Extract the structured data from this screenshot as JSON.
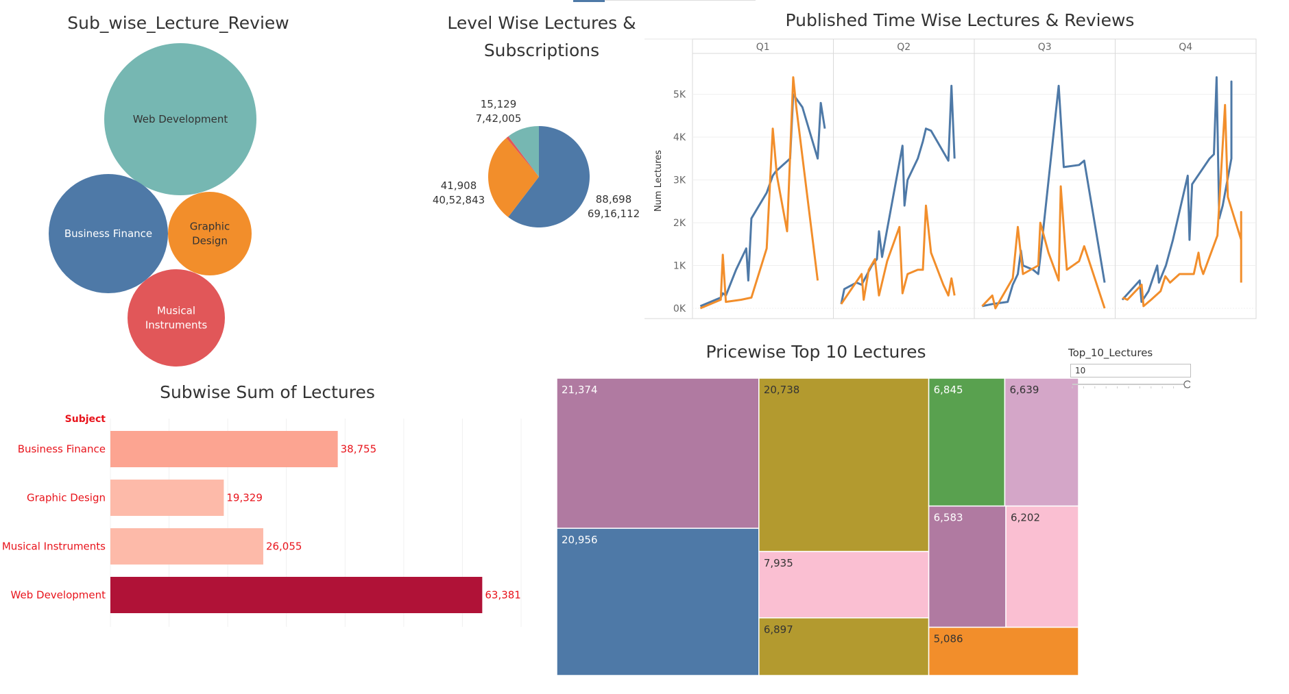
{
  "chart_data": [
    {
      "id": "bubble",
      "type": "bubble",
      "title": "Sub_wise_Lecture_Review",
      "bubbles": [
        {
          "label": "Web Development",
          "color": "#76b7b2",
          "text_color": "#333333"
        },
        {
          "label": "Business Finance",
          "color": "#4e79a7",
          "text_color": "#ffffff"
        },
        {
          "label": "Graphic Design",
          "color": "#f28e2b",
          "text_color": "#333333"
        },
        {
          "label": "Musical Instruments",
          "color": "#e15759",
          "text_color": "#ffffff"
        }
      ]
    },
    {
      "id": "pie",
      "type": "pie",
      "title": "Level Wise Lectures &\nSubscriptions",
      "slices": [
        {
          "lectures": 88698,
          "subscriptions": 6916112,
          "label_lectures": "88,698",
          "label_subscriptions": "69,16,112",
          "color": "#4e79a7"
        },
        {
          "lectures": 41908,
          "subscriptions": 4052843,
          "label_lectures": "41,908",
          "label_subscriptions": "40,52,843",
          "color": "#f28e2b"
        },
        {
          "lectures": 1200,
          "subscriptions": 0,
          "label_lectures": "",
          "label_subscriptions": "",
          "color": "#e15759"
        },
        {
          "lectures": 15129,
          "subscriptions": 742005,
          "label_lectures": "15,129",
          "label_subscriptions": "7,42,005",
          "color": "#76b7b2"
        }
      ]
    },
    {
      "id": "line",
      "type": "line",
      "title": "Published Time Wise Lectures & Reviews",
      "ylabel": "Num Lectures",
      "quarters": [
        "Q1",
        "Q2",
        "Q3",
        "Q4"
      ],
      "ylim": [
        0,
        5700
      ],
      "yticks": [
        0,
        1000,
        2000,
        3000,
        4000,
        5000
      ],
      "ytick_labels": [
        "0K",
        "1K",
        "2K",
        "3K",
        "4K",
        "5K"
      ],
      "x_range": [
        0,
        1
      ],
      "series": [
        {
          "color": "#4e79a7",
          "panels": [
            [
              [
                0.05,
                50
              ],
              [
                0.25,
                250
              ],
              [
                0.27,
                350
              ],
              [
                0.3,
                300
              ],
              [
                0.4,
                900
              ],
              [
                0.5,
                1400
              ],
              [
                0.52,
                650
              ],
              [
                0.55,
                2100
              ],
              [
                0.7,
                2700
              ],
              [
                0.76,
                3100
              ],
              [
                0.79,
                3200
              ],
              [
                0.93,
                3500
              ],
              [
                0.96,
                5000
              ],
              [
                1.05,
                4700
              ],
              [
                1.2,
                3500
              ],
              [
                1.23,
                4800
              ],
              [
                1.27,
                4200
              ]
            ],
            [
              [
                0.05,
                100
              ],
              [
                0.08,
                450
              ],
              [
                0.2,
                600
              ],
              [
                0.25,
                550
              ],
              [
                0.35,
                1000
              ],
              [
                0.4,
                1150
              ],
              [
                0.42,
                1800
              ],
              [
                0.45,
                1200
              ],
              [
                0.65,
                3800
              ],
              [
                0.67,
                2400
              ],
              [
                0.7,
                3000
              ],
              [
                0.8,
                3500
              ],
              [
                0.85,
                3900
              ],
              [
                0.88,
                4200
              ],
              [
                0.93,
                4150
              ],
              [
                1.1,
                3450
              ],
              [
                1.13,
                5200
              ],
              [
                1.16,
                3500
              ]
            ],
            [
              [
                0.05,
                50
              ],
              [
                0.15,
                100
              ],
              [
                0.3,
                150
              ],
              [
                0.35,
                550
              ],
              [
                0.4,
                800
              ],
              [
                0.43,
                1350
              ],
              [
                0.45,
                1000
              ],
              [
                0.55,
                900
              ],
              [
                0.6,
                800
              ],
              [
                0.62,
                1200
              ],
              [
                0.8,
                5200
              ],
              [
                0.85,
                3300
              ],
              [
                1.0,
                3350
              ],
              [
                1.05,
                3450
              ],
              [
                1.25,
                600
              ]
            ],
            [
              [
                0.05,
                200
              ],
              [
                0.25,
                650
              ],
              [
                0.27,
                150
              ],
              [
                0.35,
                400
              ],
              [
                0.45,
                1000
              ],
              [
                0.47,
                600
              ],
              [
                0.55,
                1000
              ],
              [
                0.63,
                1600
              ],
              [
                0.8,
                3100
              ],
              [
                0.82,
                1600
              ],
              [
                0.85,
                2900
              ],
              [
                1.05,
                3500
              ],
              [
                1.1,
                3600
              ],
              [
                1.13,
                5400
              ],
              [
                1.16,
                2100
              ],
              [
                1.2,
                2400
              ],
              [
                1.3,
                3500
              ],
              [
                1.45,
                5300
              ],
              [
                1.5,
                5100
              ],
              [
                1.52,
                4700
              ]
            ]
          ]
        },
        {
          "color": "#f28e2b",
          "panels": [
            [
              [
                0.05,
                0
              ],
              [
                0.25,
                200
              ],
              [
                0.27,
                1250
              ],
              [
                0.3,
                150
              ],
              [
                0.45,
                200
              ],
              [
                0.55,
                250
              ],
              [
                0.7,
                1400
              ],
              [
                0.76,
                4200
              ],
              [
                0.8,
                3100
              ],
              [
                0.9,
                1800
              ],
              [
                0.96,
                5400
              ],
              [
                0.99,
                4700
              ],
              [
                1.2,
                650
              ]
            ],
            [
              [
                0.05,
                100
              ],
              [
                0.15,
                450
              ],
              [
                0.25,
                800
              ],
              [
                0.27,
                200
              ],
              [
                0.32,
                900
              ],
              [
                0.38,
                1150
              ],
              [
                0.42,
                300
              ],
              [
                0.5,
                1100
              ],
              [
                0.62,
                1900
              ],
              [
                0.65,
                350
              ],
              [
                0.7,
                800
              ],
              [
                0.8,
                900
              ],
              [
                0.85,
                900
              ],
              [
                0.88,
                2400
              ],
              [
                0.93,
                1300
              ],
              [
                1.05,
                550
              ],
              [
                1.1,
                300
              ],
              [
                1.13,
                700
              ],
              [
                1.16,
                300
              ]
            ],
            [
              [
                0.05,
                50
              ],
              [
                0.15,
                300
              ],
              [
                0.18,
                0
              ],
              [
                0.35,
                700
              ],
              [
                0.4,
                1900
              ],
              [
                0.45,
                800
              ],
              [
                0.6,
                1000
              ],
              [
                0.62,
                2000
              ],
              [
                0.7,
                1300
              ],
              [
                0.8,
                650
              ],
              [
                0.82,
                2850
              ],
              [
                0.88,
                900
              ],
              [
                1.0,
                1100
              ],
              [
                1.05,
                1450
              ],
              [
                1.25,
                0
              ]
            ],
            [
              [
                0.05,
                250
              ],
              [
                0.1,
                200
              ],
              [
                0.25,
                550
              ],
              [
                0.27,
                50
              ],
              [
                0.35,
                200
              ],
              [
                0.45,
                400
              ],
              [
                0.5,
                750
              ],
              [
                0.55,
                600
              ],
              [
                0.65,
                800
              ],
              [
                0.8,
                800
              ],
              [
                0.85,
                1300
              ],
              [
                0.87,
                1000
              ],
              [
                0.9,
                800
              ],
              [
                1.05,
                1700
              ],
              [
                1.13,
                4750
              ],
              [
                1.16,
                2600
              ],
              [
                1.3,
                1600
              ],
              [
                1.35,
                2250
              ],
              [
                1.4,
                600
              ]
            ]
          ]
        }
      ]
    },
    {
      "id": "hbar",
      "type": "bar",
      "title": "Subwise Sum of Lectures",
      "header": "Subject",
      "categories": [
        "Business Finance",
        "Graphic Design",
        "Musical Instruments",
        "Web Development"
      ],
      "values": [
        38755,
        19329,
        26055,
        63381
      ],
      "value_labels": [
        "38,755",
        "19,329",
        "26,055",
        "63,381"
      ],
      "colors": [
        "#fca491",
        "#fdbaa9",
        "#fdbaa9",
        "#b01237"
      ],
      "xlim": [
        0,
        70000
      ],
      "gridlines": [
        0,
        10000,
        20000,
        30000,
        40000,
        50000,
        60000,
        70000
      ]
    },
    {
      "id": "treemap",
      "type": "treemap",
      "title": "Pricewise Top 10 Lectures",
      "cells": [
        {
          "value": 21374,
          "label": "21,374",
          "color": "#b07aa1",
          "text_color": "#ffffff"
        },
        {
          "value": 20956,
          "label": "20,956",
          "color": "#4e79a7",
          "text_color": "#ffffff"
        },
        {
          "value": 20738,
          "label": "20,738",
          "color": "#b39a2f",
          "text_color": "#333333"
        },
        {
          "value": 7935,
          "label": "7,935",
          "color": "#fabfd2",
          "text_color": "#333333"
        },
        {
          "value": 6897,
          "label": "6,897",
          "color": "#b39a2f",
          "text_color": "#333333"
        },
        {
          "value": 6845,
          "label": "6,845",
          "color": "#59a14f",
          "text_color": "#ffffff"
        },
        {
          "value": 6639,
          "label": "6,639",
          "color": "#d4a6c8",
          "text_color": "#333333"
        },
        {
          "value": 6583,
          "label": "6,583",
          "color": "#b07aa1",
          "text_color": "#ffffff"
        },
        {
          "value": 6202,
          "label": "6,202",
          "color": "#fabfd2",
          "text_color": "#333333"
        },
        {
          "value": 5086,
          "label": "5,086",
          "color": "#f28e2b",
          "text_color": "#333333"
        }
      ]
    }
  ],
  "parameter": {
    "label": "Top_10_Lectures",
    "value": "10",
    "slider_fraction": 1.0
  }
}
